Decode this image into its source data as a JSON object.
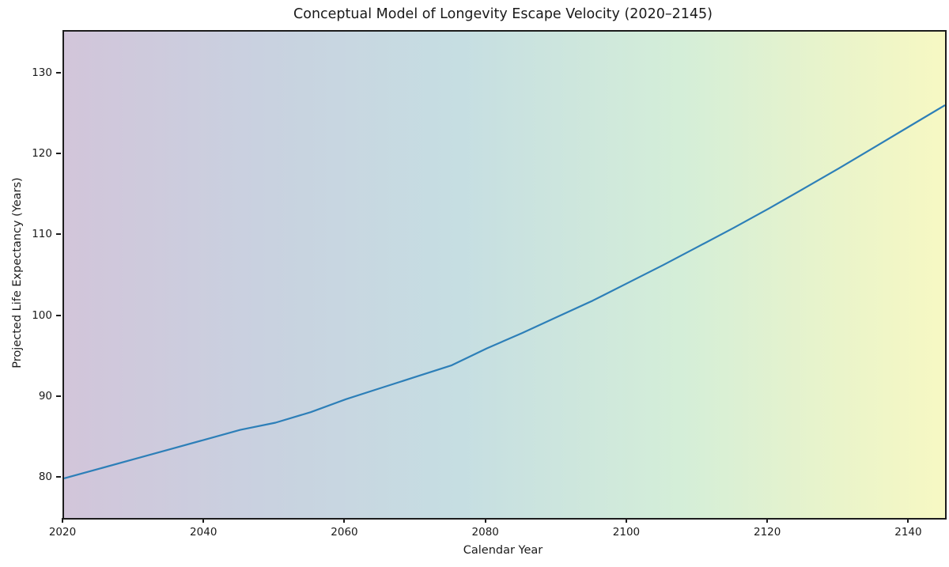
{
  "figure": {
    "title": "Conceptual Model of Longevity Escape Velocity (2020–2145)",
    "xlabel": "Calendar Year",
    "ylabel": "Projected Life Expectancy (Years)"
  },
  "chart_data": {
    "type": "line",
    "title": "Conceptual Model of Longevity Escape Velocity (2020–2145)",
    "xlabel": "Calendar Year",
    "ylabel": "Projected Life Expectancy (Years)",
    "xlim": [
      2020,
      2145
    ],
    "ylim": [
      75.1,
      135.3
    ],
    "xticks": [
      2020,
      2040,
      2060,
      2080,
      2100,
      2120,
      2140
    ],
    "yticks": [
      80,
      90,
      100,
      110,
      120,
      130
    ],
    "grid": false,
    "legend_position": "none",
    "line_color": "#2d7fb8",
    "line_width": 2.2,
    "background_gradient": {
      "direction": "left-to-right",
      "stops": [
        {
          "offset": 0.0,
          "color": "#d2c5da"
        },
        {
          "offset": 0.22,
          "color": "#c9d1e0"
        },
        {
          "offset": 0.45,
          "color": "#c6dee2"
        },
        {
          "offset": 0.7,
          "color": "#d4eed8"
        },
        {
          "offset": 0.88,
          "color": "#eaf4ca"
        },
        {
          "offset": 1.0,
          "color": "#f7f8c3"
        }
      ]
    },
    "series": [
      {
        "name": "Projected life expectancy",
        "x": [
          2020,
          2025,
          2030,
          2035,
          2040,
          2045,
          2050,
          2055,
          2060,
          2065,
          2070,
          2075,
          2080,
          2085,
          2090,
          2095,
          2100,
          2105,
          2110,
          2115,
          2120,
          2125,
          2130,
          2135,
          2140,
          2145
        ],
        "y": [
          80.0,
          81.2,
          82.4,
          83.6,
          84.8,
          86.0,
          86.9,
          88.2,
          89.8,
          91.2,
          92.6,
          94.0,
          96.1,
          98.0,
          100.0,
          102.0,
          104.2,
          106.4,
          108.7,
          111.0,
          113.4,
          115.9,
          118.4,
          121.0,
          123.6,
          126.2
        ]
      }
    ]
  }
}
